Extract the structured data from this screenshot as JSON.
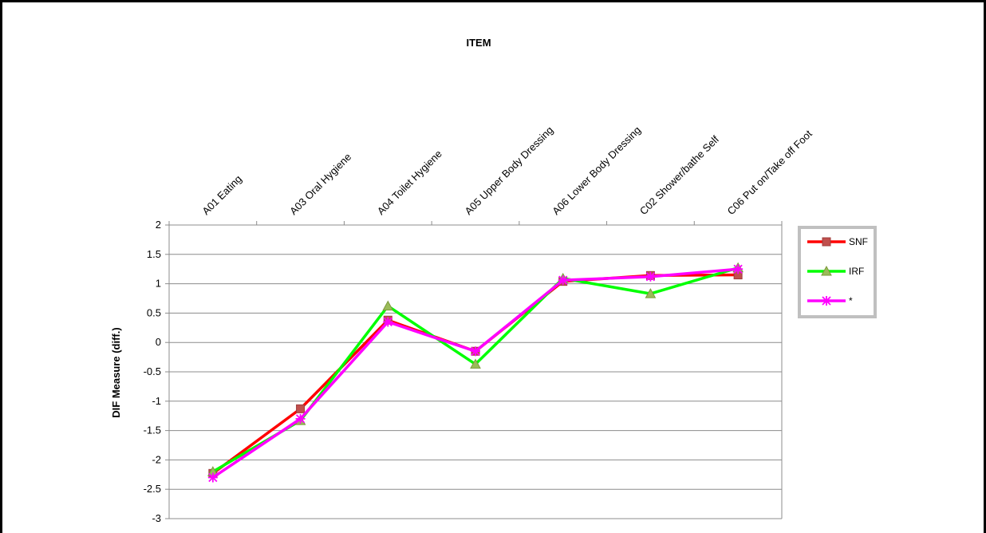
{
  "chart_data": {
    "type": "line",
    "title": "ITEM",
    "xlabel": "",
    "ylabel": "DIF Measure (diff.)",
    "ylim": [
      -3,
      2
    ],
    "ytick_step": 0.5,
    "yticks": [
      "2",
      "1.5",
      "1",
      "0.5",
      "0",
      "-0.5",
      "-1",
      "-1.5",
      "-2",
      "-2.5",
      "-3"
    ],
    "categories": [
      "A01 Eating",
      "A03 Oral Hygiene",
      "A04 Toilet Hygiene",
      "A05 Upper Body Dressing",
      "A06 Lower Body Dressing",
      "C02 Shower/bathe Self",
      "C06 Put on/Take off Foot"
    ],
    "x_axis_position": "top",
    "grid": "horizontal",
    "legend_position": "right",
    "series": [
      {
        "name": "SNF",
        "color": "#ff0000",
        "marker": "square",
        "marker_color": "#c0504d",
        "values": [
          -2.23,
          -1.13,
          0.38,
          -0.15,
          1.04,
          1.14,
          1.15
        ]
      },
      {
        "name": "IRF",
        "color": "#00ff00",
        "marker": "triangle",
        "marker_color": "#9bbb59",
        "values": [
          -2.2,
          -1.33,
          0.62,
          -0.37,
          1.09,
          0.83,
          1.27
        ]
      },
      {
        "name": "*",
        "color": "#ff00ff",
        "marker": "star",
        "marker_color": "#ff00ff",
        "values": [
          -2.3,
          -1.3,
          0.35,
          -0.15,
          1.06,
          1.12,
          1.25
        ]
      }
    ]
  }
}
